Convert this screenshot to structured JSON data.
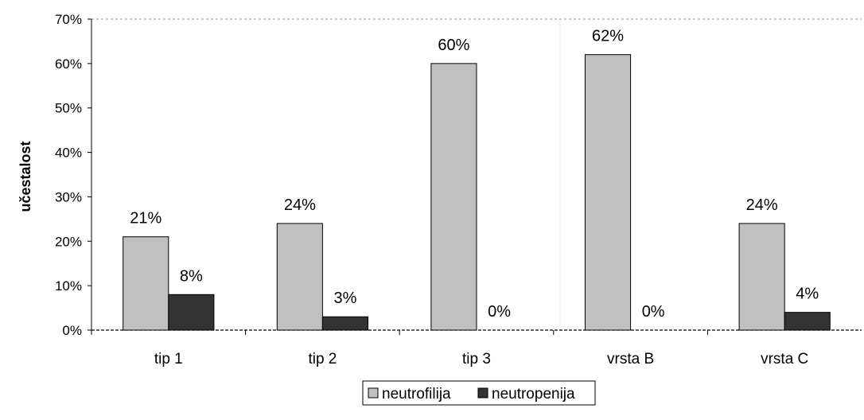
{
  "chart_data": {
    "type": "bar",
    "categories": [
      "tip 1",
      "tip 2",
      "tip 3",
      "vrsta B",
      "vrsta C"
    ],
    "series": [
      {
        "name": "neutrofilija",
        "values": [
          21,
          24,
          60,
          62,
          24
        ],
        "color": "#c0c0c0"
      },
      {
        "name": "neutropenija",
        "values": [
          8,
          3,
          0,
          0,
          4
        ],
        "color": "#333333"
      }
    ],
    "data_labels": [
      [
        "21%",
        "24%",
        "60%",
        "62%",
        "24%"
      ],
      [
        "8%",
        "3%",
        "0%",
        "0%",
        "4%"
      ]
    ],
    "y_ticks": [
      "0%",
      "10%",
      "20%",
      "30%",
      "40%",
      "50%",
      "60%",
      "70%"
    ],
    "ylim": [
      0,
      70
    ],
    "ylabel": "učestalost",
    "xlabel": "",
    "title": "",
    "legend_position": "bottom",
    "grid": false
  }
}
